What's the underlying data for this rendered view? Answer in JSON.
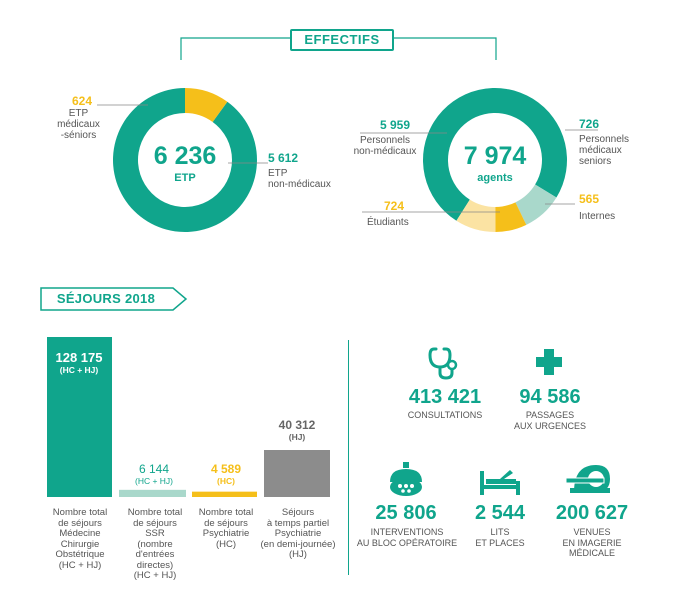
{
  "effectifs": {
    "title": "EFFECTIFS",
    "etp": {
      "center_value": "6 236",
      "center_label": "ETP",
      "slices": [
        {
          "value": "624",
          "label_lines": [
            "ETP",
            "médicaux",
            "-séniors"
          ],
          "color": "#f5bf1a"
        },
        {
          "value": "5 612",
          "label_lines": [
            "ETP",
            "non-médicaux"
          ],
          "color": "#10a58c"
        }
      ]
    },
    "agents": {
      "center_value": "7 974",
      "center_label": "agents",
      "slices": [
        {
          "value": "5 959",
          "label_lines": [
            "Personnels",
            "non-médicaux"
          ],
          "color": "#10a58c"
        },
        {
          "value": "726",
          "label_lines": [
            "Personnels",
            "médicaux",
            "seniors"
          ],
          "color": "#a9d8cb"
        },
        {
          "value": "565",
          "label_lines": [
            "Internes"
          ],
          "color": "#f5bf1a"
        },
        {
          "value": "724",
          "label_lines": [
            "Étudiants"
          ],
          "color": "#fbe3a3"
        }
      ]
    }
  },
  "sejours": {
    "title": "SÉJOURS 2018",
    "bars": [
      {
        "value_text": "128 175",
        "sub": "(HC + HJ)",
        "label_lines": [
          "Nombre total",
          "de séjours",
          "Médecine",
          "Chirurgie",
          "Obstétrique",
          "(HC + HJ)"
        ],
        "color": "#10a58c"
      },
      {
        "value_text": "6 144",
        "sub": "(HC + HJ)",
        "label_lines": [
          "Nombre total",
          "de séjours",
          "SSR",
          "(nombre",
          "d'entrées directes)",
          "(HC + HJ)"
        ],
        "color": "#a9d8cb"
      },
      {
        "value_text": "4 589",
        "sub": "(HC)",
        "label_lines": [
          "Nombre total",
          "de séjours",
          "Psychiatrie",
          "(HC)"
        ],
        "color": "#f5bf1a"
      },
      {
        "value_text": "40 312",
        "sub": "(HJ)",
        "label_lines": [
          "Séjours",
          "à temps partiel",
          "Psychiatrie",
          "(en demi-journée)",
          "(HJ)"
        ],
        "color": "#8c8c8c"
      }
    ]
  },
  "chart_data": [
    {
      "type": "pie",
      "title": "",
      "categories": [
        "ETP médicaux -séniors",
        "ETP non-médicaux"
      ],
      "values": [
        624,
        5612
      ],
      "total": 6236
    },
    {
      "type": "pie",
      "title": "",
      "categories": [
        "Personnels non-médicaux",
        "Personnels médicaux seniors",
        "Internes",
        "Étudiants"
      ],
      "values": [
        5959,
        726,
        565,
        724
      ],
      "total": 7974
    },
    {
      "type": "bar",
      "title": "SÉJOURS 2018",
      "categories": [
        "Nombre total de séjours Médecine Chirurgie Obstétrique (HC + HJ)",
        "Nombre total de séjours SSR (nombre d'entrées directes) (HC + HJ)",
        "Nombre total de séjours Psychiatrie (HC)",
        "Séjours à temps partiel Psychiatrie (en demi-journée) (HJ)"
      ],
      "values": [
        128175,
        6144,
        4589,
        40312
      ]
    }
  ],
  "stats": [
    {
      "icon": "stethoscope-icon",
      "value": "413 421",
      "label_lines": [
        "CONSULTATIONS"
      ]
    },
    {
      "icon": "medical-cross-icon",
      "value": "94 586",
      "label_lines": [
        "PASSAGES",
        "AUX URGENCES"
      ]
    },
    {
      "icon": "surgical-lamp-icon",
      "value": "25 806",
      "label_lines": [
        "INTERVENTIONS",
        "AU BLOC OPÉRATOIRE"
      ]
    },
    {
      "icon": "hospital-bed-icon",
      "value": "2 544",
      "label_lines": [
        "LITS",
        "ET PLACES"
      ]
    },
    {
      "icon": "mri-scanner-icon",
      "value": "200 627",
      "label_lines": [
        "VENUES",
        "EN IMAGERIE",
        "MÉDICALE"
      ]
    }
  ]
}
